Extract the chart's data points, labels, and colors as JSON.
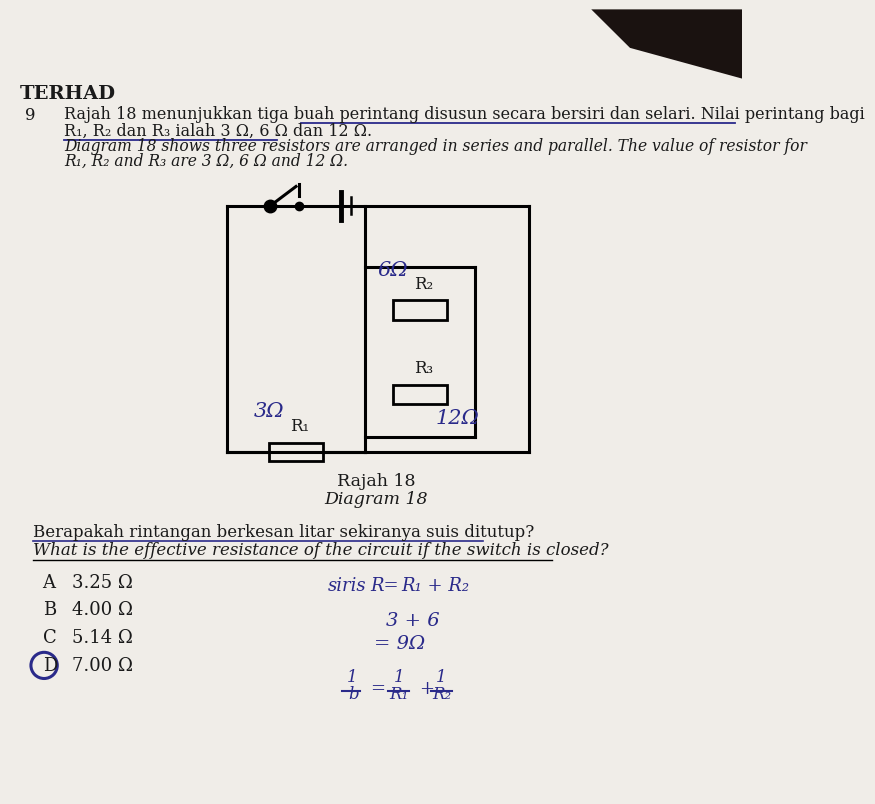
{
  "bg_color": "#dedad6",
  "dark_corner_color": "#2a2220",
  "header_label": "TERHAD",
  "question_number": "9",
  "malay_text_line1": "Rajah 18 menunjukkan tiga buah perintang disusun secara bersiri dan selari. Nilai perintang bagi",
  "malay_text_line2": "R₁, R₂ dan R₃ ialah 3 Ω, 6 Ω dan 12 Ω.",
  "english_text_line1": "Diagram 18 shows three resistors are arranged in series and parallel. The value of resistor for",
  "english_text_line2": "R₁, R₂ and R₃ are 3 Ω, 6 Ω and 12 Ω.",
  "rajah_label": "Rajah 18",
  "diagram_label": "Diagram 18",
  "malay_question": "Berapakah rintangan berkesan litar sekiranya suis ditutup?",
  "english_question": "What is the effective resistance of the circuit if the switch is closed?",
  "options": [
    {
      "letter": "A",
      "value": "3.25 Ω"
    },
    {
      "letter": "B",
      "value": "4.00 Ω"
    },
    {
      "letter": "C",
      "value": "5.14 Ω"
    },
    {
      "letter": "D",
      "value": "7.00 Ω"
    }
  ],
  "circled_answer": "D",
  "handwriting_color": "#2a2a8a",
  "underline_color": "#2a2a8a",
  "text_color": "#1a1a1a",
  "paper_color": "#f0ede8"
}
